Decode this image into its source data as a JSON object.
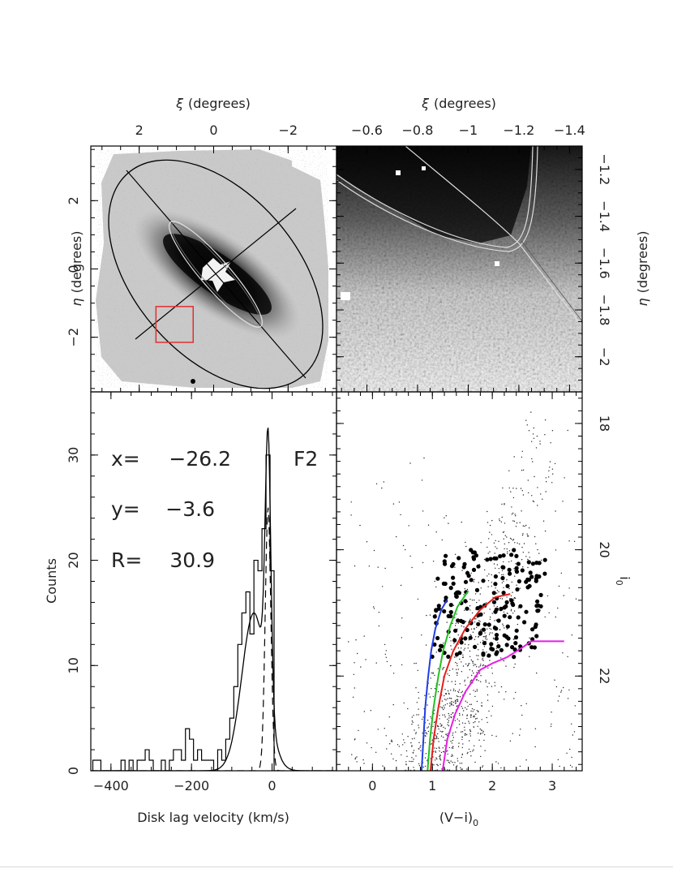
{
  "chart_data": [
    {
      "type": "image",
      "panel": "map-full",
      "xlabel_greek": "ξ",
      "xlabel_unit": "(degrees)",
      "ylabel_greek": "η",
      "ylabel_unit": "(degrees)",
      "xlim": [
        3.3,
        -3.3
      ],
      "ylim": [
        -3.6,
        3.6
      ],
      "xticks": [
        2,
        0,
        -2
      ],
      "xtick_labels": [
        "2",
        "0",
        "−2"
      ],
      "yticks": [
        -2,
        0,
        2
      ],
      "ytick_labels": [
        "−2",
        "0",
        "2"
      ],
      "field_box": {
        "x0": 1.55,
        "x1": 0.55,
        "y0": -2.15,
        "y1": -1.1,
        "color": "#e03030"
      }
    },
    {
      "type": "image",
      "panel": "map-zoom",
      "xlabel_greek": "ξ",
      "xlabel_unit": "(degrees)",
      "ylabel_greek": "η",
      "ylabel_unit": "(degrees)",
      "xlim": [
        -0.48,
        -1.45
      ],
      "ylim": [
        -2.15,
        -1.1
      ],
      "xticks": [
        -0.6,
        -0.8,
        -1,
        -1.2,
        -1.4
      ],
      "xtick_labels": [
        "−0.6",
        "−0.8",
        "−1",
        "−1.2",
        "−1.4"
      ],
      "yticks": [
        -2,
        -1.8,
        -1.6,
        -1.4,
        -1.2
      ],
      "ytick_labels": [
        "−2",
        "−1.8",
        "−1.6",
        "−1.4",
        "−1.2"
      ]
    },
    {
      "type": "histogram",
      "panel": "velocity-histogram",
      "xlabel": "Disk lag velocity (km/s)",
      "ylabel": "Counts",
      "xlim": [
        -450,
        160
      ],
      "ylim": [
        0,
        36
      ],
      "xticks": [
        -400,
        -200,
        0
      ],
      "xtick_labels": [
        "−400",
        "−200",
        "0"
      ],
      "yticks": [
        0,
        10,
        20,
        30
      ],
      "ytick_labels": [
        "0",
        "10",
        "20",
        "30"
      ],
      "bin_width": 10,
      "bins": [
        {
          "x": -440,
          "count": 1
        },
        {
          "x": -430,
          "count": 1
        },
        {
          "x": -420,
          "count": 0
        },
        {
          "x": -410,
          "count": 0
        },
        {
          "x": -400,
          "count": 0
        },
        {
          "x": -390,
          "count": 0
        },
        {
          "x": -380,
          "count": 0
        },
        {
          "x": -370,
          "count": 1
        },
        {
          "x": -360,
          "count": 0
        },
        {
          "x": -350,
          "count": 1
        },
        {
          "x": -340,
          "count": 0
        },
        {
          "x": -330,
          "count": 1
        },
        {
          "x": -320,
          "count": 1
        },
        {
          "x": -310,
          "count": 2
        },
        {
          "x": -300,
          "count": 1
        },
        {
          "x": -290,
          "count": 0
        },
        {
          "x": -280,
          "count": 0
        },
        {
          "x": -270,
          "count": 1
        },
        {
          "x": -260,
          "count": 0
        },
        {
          "x": -250,
          "count": 1
        },
        {
          "x": -240,
          "count": 2
        },
        {
          "x": -230,
          "count": 2
        },
        {
          "x": -220,
          "count": 1
        },
        {
          "x": -210,
          "count": 4
        },
        {
          "x": -200,
          "count": 3
        },
        {
          "x": -190,
          "count": 1
        },
        {
          "x": -180,
          "count": 2
        },
        {
          "x": -170,
          "count": 1
        },
        {
          "x": -160,
          "count": 1
        },
        {
          "x": -150,
          "count": 1
        },
        {
          "x": -140,
          "count": 0
        },
        {
          "x": -130,
          "count": 2
        },
        {
          "x": -120,
          "count": 1
        },
        {
          "x": -110,
          "count": 3
        },
        {
          "x": -100,
          "count": 5
        },
        {
          "x": -90,
          "count": 8
        },
        {
          "x": -80,
          "count": 12
        },
        {
          "x": -70,
          "count": 15
        },
        {
          "x": -60,
          "count": 17
        },
        {
          "x": -50,
          "count": 13
        },
        {
          "x": -40,
          "count": 20
        },
        {
          "x": -30,
          "count": 19
        },
        {
          "x": -20,
          "count": 23
        },
        {
          "x": -10,
          "count": 30
        },
        {
          "x": 0,
          "count": 19
        },
        {
          "x": 10,
          "count": 0
        }
      ],
      "series": [
        {
          "name": "",
          "style": "solid",
          "components": [
            {
              "amp": 15,
              "mu": -45,
              "sigma": 30
            },
            {
              "amp": 25,
              "mu": -10,
              "sigma": 7
            }
          ]
        },
        {
          "name": "",
          "style": "dashed",
          "components": [
            {
              "amp": 25,
              "mu": -10,
              "sigma": 7
            }
          ]
        }
      ],
      "annotations": [
        {
          "key": "x=",
          "value": "−26.2"
        },
        {
          "key": "y=",
          "value": "−3.6"
        },
        {
          "key": "R=",
          "value": "30.9"
        }
      ],
      "field_label": "F2"
    },
    {
      "type": "scatter",
      "panel": "cmd",
      "xlabel_main": "(V−i)",
      "xlabel_sub": "0",
      "ylabel_main": "i",
      "ylabel_sub": "0",
      "xlim": [
        -0.6,
        3.5
      ],
      "ylim": [
        23.5,
        17.5
      ],
      "xticks": [
        0,
        1,
        2,
        3
      ],
      "xtick_labels": [
        "0",
        "1",
        "2",
        "3"
      ],
      "yticks": [
        18,
        20,
        22
      ],
      "ytick_labels": [
        "18",
        "20",
        "22"
      ],
      "isochrones": [
        {
          "color": "#1f3ee6",
          "points": [
            [
              0.82,
              23.5
            ],
            [
              0.85,
              23.0
            ],
            [
              0.88,
              22.5
            ],
            [
              0.93,
              22.0
            ],
            [
              0.98,
              21.6
            ],
            [
              1.05,
              21.25
            ],
            [
              1.15,
              20.95
            ],
            [
              1.24,
              20.8
            ]
          ]
        },
        {
          "color": "#22c022",
          "points": [
            [
              0.92,
              23.5
            ],
            [
              0.96,
              23.0
            ],
            [
              1.02,
              22.5
            ],
            [
              1.1,
              22.0
            ],
            [
              1.18,
              21.6
            ],
            [
              1.3,
              21.2
            ],
            [
              1.42,
              20.9
            ],
            [
              1.6,
              20.65
            ]
          ]
        },
        {
          "color": "#e81c1c",
          "points": [
            [
              0.97,
              23.5
            ],
            [
              1.02,
              23.0
            ],
            [
              1.1,
              22.5
            ],
            [
              1.2,
              22.0
            ],
            [
              1.35,
              21.6
            ],
            [
              1.55,
              21.25
            ],
            [
              1.8,
              20.95
            ],
            [
              2.05,
              20.75
            ],
            [
              2.3,
              20.7
            ]
          ]
        },
        {
          "color": "#e61ee6",
          "points": [
            [
              1.17,
              23.5
            ],
            [
              1.25,
              23.0
            ],
            [
              1.38,
              22.6
            ],
            [
              1.55,
              22.25
            ],
            [
              1.8,
              21.9
            ],
            [
              2.0,
              21.8
            ],
            [
              2.25,
              21.7
            ],
            [
              2.5,
              21.55
            ],
            [
              2.65,
              21.45
            ],
            [
              3.2,
              21.45
            ]
          ]
        }
      ]
    }
  ]
}
